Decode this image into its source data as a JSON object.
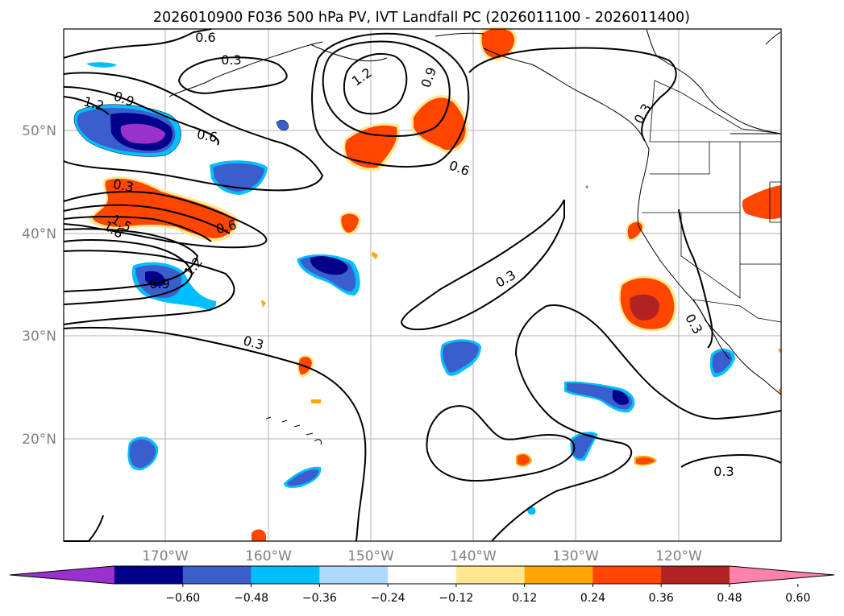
{
  "title": "2026010900 F036 500 hPa PV, IVT Landfall PC (2026011100 - 2026011400)",
  "latitude_labels": [
    "50°N",
    "40°N",
    "30°N",
    "20°N"
  ],
  "longitude_labels": [
    "170°W",
    "160°W",
    "150°W",
    "140°W",
    "130°W",
    "120°W"
  ],
  "contour_labels": [
    "0.6",
    "0.3",
    "1.2",
    "0.9",
    "0.3",
    "1.2",
    "0.9",
    "0.6",
    "0.6",
    "0.3",
    "0.6",
    "1.5",
    "1.8",
    "1.2",
    "0.9",
    "0.3",
    "0.3",
    "0.3",
    "0.3"
  ],
  "colorbar": {
    "tick_labels": [
      "−0.60",
      "−0.48",
      "−0.36",
      "−0.24",
      "−0.12",
      "0.12",
      "0.24",
      "0.36",
      "0.48",
      "0.60"
    ],
    "colors": [
      "#9932cc",
      "#00008b",
      "#3a5fcd",
      "#00bfff",
      "#add8ff",
      "#ffffff",
      "#ffe88f",
      "#ffa500",
      "#ff4500",
      "#b22222",
      "#ff82ab"
    ]
  }
}
